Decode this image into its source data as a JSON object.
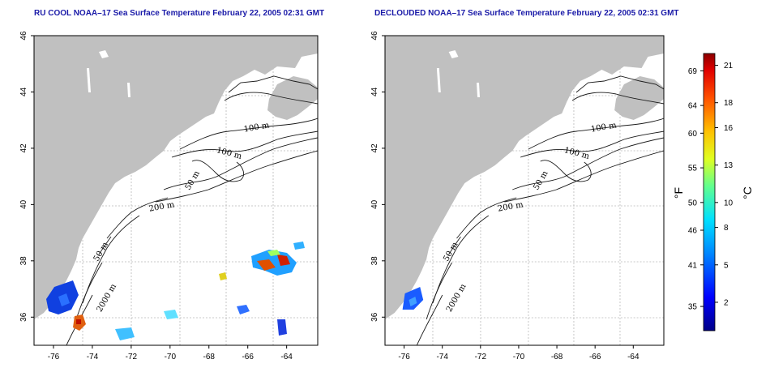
{
  "maps": [
    {
      "id": "left",
      "title": "RU COOL NOAA–17 Sea Surface Temperature February 22, 2005 02:31 GMT",
      "contour_labels": [
        "100 m",
        "100 m",
        "50 m",
        "200 m",
        "50 m",
        "2000 m"
      ],
      "has_sst_patches": true
    },
    {
      "id": "right",
      "title": "DECLOUDED NOAA–17 Sea Surface Temperature February 22, 2005 02:31 GMT",
      "contour_labels": [
        "100 m",
        "100 m",
        "50 m",
        "200 m",
        "50 m",
        "2000 m"
      ],
      "has_sst_patches": false
    }
  ],
  "axes": {
    "lon_ticks": [
      "-76",
      "-74",
      "-72",
      "-70",
      "-68",
      "-66",
      "-64"
    ],
    "lat_ticks": [
      "36",
      "38",
      "40",
      "42",
      "44",
      "46"
    ]
  },
  "colorbar": {
    "fahrenheit_ticks": [
      "69",
      "64",
      "60",
      "55",
      "50",
      "46",
      "41",
      "35"
    ],
    "celsius_ticks": [
      "21",
      "18",
      "16",
      "13",
      "10",
      "8",
      "5",
      "2"
    ],
    "fahrenheit_unit": "°F",
    "celsius_unit": "°C"
  },
  "colors": {
    "land": "#c0c0c0",
    "title": "#1a1aa8",
    "grid": "#b0b0b0"
  }
}
